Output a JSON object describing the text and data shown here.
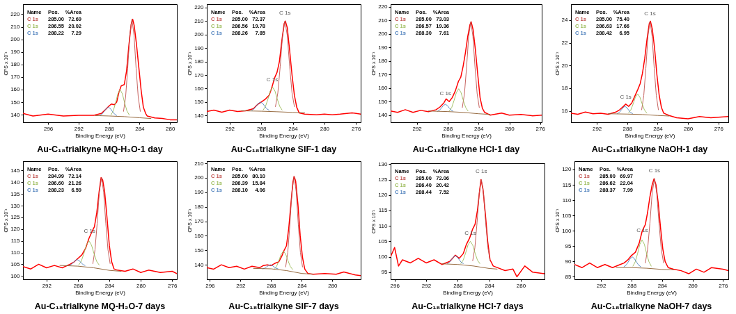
{
  "chart_data": [
    {
      "type": "line",
      "title": "Au-C₁₈trialkyne    MQ-H₂O-1 day",
      "xlabel": "Binding Energy (eV)",
      "ylabel": "CPS x 10⁻¹",
      "xlim": [
        299.3,
        279.1
      ],
      "ylim": [
        134,
        228
      ],
      "xticks": [
        296,
        292,
        288,
        284,
        280
      ],
      "yticks": [
        140,
        150,
        160,
        170,
        180,
        190,
        200,
        210,
        220
      ],
      "grid": false,
      "annotations": [
        "Name",
        "Pos.",
        "%Area",
        "C 1s",
        "285.00",
        "72.69",
        "C 1s",
        "286.55",
        "20.02",
        "C 1s",
        "288.22",
        "7.29"
      ],
      "series": [
        {
          "color": "#ff0000",
          "x": [
            299.3,
            298,
            296,
            294,
            292,
            290,
            289,
            288.5,
            288,
            287.7,
            287.3,
            287,
            286.7,
            286.4,
            286,
            285.7,
            285.4,
            285.1,
            284.9,
            284.7,
            284.4,
            284.1,
            283.8,
            283.5,
            283.2,
            283,
            282,
            281,
            280,
            279.1
          ],
          "values": [
            141,
            139,
            140.5,
            139,
            139.5,
            139.5,
            141,
            144,
            147,
            148.5,
            148,
            150,
            158,
            163,
            164,
            175,
            195,
            212,
            216,
            211,
            196,
            178,
            160,
            146,
            141,
            139,
            137.5,
            137,
            136,
            136
          ]
        },
        {
          "color": "#c0504d",
          "x": [
            286.1,
            285.825,
            285.55,
            285.275,
            285,
            284.725,
            284.45,
            284.175,
            283.9
          ],
          "values": [
            142.7,
            154.4,
            177,
            203.5,
            216,
            203.5,
            177,
            154.4,
            142.7
          ]
        },
        {
          "color": "#9bbb59",
          "x": [
            287.75,
            287.45,
            287.15,
            286.85,
            286.55,
            286.25,
            285.95,
            285.65,
            285.35
          ],
          "values": [
            139.8,
            143,
            149.3,
            156.6,
            160,
            156.6,
            149.3,
            143,
            139.8
          ]
        },
        {
          "color": "#4f81bd",
          "x": [
            289.2,
            288.925,
            288.65,
            288.375,
            288.1,
            287.825,
            287.55,
            287.275,
            287
          ],
          "values": [
            139.4,
            140.5,
            142.5,
            144.9,
            146,
            144.9,
            142.5,
            140.5,
            139.4
          ]
        },
        {
          "color": "#8b5a2b",
          "x": [
            289.8,
            288,
            286,
            284,
            282.5
          ],
          "values": [
            139.3,
            139,
            138.5,
            137.6,
            137
          ]
        }
      ]
    },
    {
      "type": "line",
      "title": "Au-C₁₈trialkyne    SIF-1 day",
      "xlabel": "Binding Energy (eV)",
      "ylabel": "CPS x 10⁻¹",
      "xlim": [
        294.9,
        275.4
      ],
      "ylim": [
        135,
        222.5
      ],
      "xticks": [
        292,
        288,
        284,
        280,
        276
      ],
      "yticks": [
        140,
        150,
        160,
        170,
        180,
        190,
        200,
        210,
        220
      ],
      "grid": false,
      "annotations": [
        "Name",
        "Pos.",
        "%Area",
        "C 1s",
        "285.00",
        "72.37",
        "C 1s",
        "286.56",
        "19.78",
        "C 1s",
        "288.26",
        "7.85",
        {
          "text": "C 1s",
          "x": 285,
          "y": 212
        },
        {
          "text": "C 1s",
          "x": 286.6,
          "y": 163
        }
      ],
      "series": [
        {
          "color": "#ff0000",
          "x": [
            294.9,
            294,
            293,
            292,
            291,
            290,
            289,
            288.5,
            288,
            287.5,
            287,
            286.7,
            286.3,
            286,
            285.7,
            285.4,
            285.1,
            284.95,
            284.7,
            284.4,
            284.1,
            283.8,
            283.5,
            283.2,
            282.5,
            281,
            280,
            279,
            278,
            276.5,
            275.4
          ],
          "values": [
            143,
            144,
            142.5,
            144,
            143,
            143.5,
            145,
            148,
            150,
            152,
            155,
            160,
            168,
            172,
            180,
            195,
            208,
            210,
            205,
            188,
            170,
            155,
            146,
            142,
            141,
            140.5,
            141,
            140.5,
            141,
            142,
            141
          ]
        },
        {
          "color": "#c0504d",
          "x": [
            286.2,
            285.9,
            285.6,
            285.3,
            285,
            284.7,
            284.4,
            284.1,
            283.8
          ],
          "values": [
            146.6,
            156.7,
            176.3,
            199.2,
            210,
            199.2,
            176.3,
            156.7,
            146.6
          ]
        },
        {
          "color": "#9bbb59",
          "x": [
            287.76,
            287.46,
            287.16,
            286.86,
            286.56,
            286.26,
            285.96,
            285.66,
            285.36
          ],
          "values": [
            144.1,
            146.8,
            152,
            158.1,
            161,
            158.1,
            152,
            146.8,
            144.1
          ]
        },
        {
          "color": "#4f81bd",
          "x": [
            289.2,
            288.925,
            288.65,
            288.375,
            288.1,
            287.825,
            287.55,
            287.275,
            287
          ],
          "values": [
            143.9,
            144.9,
            146.8,
            149,
            150,
            149,
            146.8,
            144.9,
            143.9
          ]
        },
        {
          "color": "#8b5a2b",
          "x": [
            290.5,
            288,
            286,
            284,
            282.5
          ],
          "values": [
            143.5,
            143.2,
            142.8,
            142.3,
            142
          ]
        }
      ]
    },
    {
      "type": "line",
      "title": "Au-C₁₈trialkyne    HCl-1 day",
      "xlabel": "Binding Energy (eV)",
      "ylabel": "CPS x 10⁻¹",
      "xlim": [
        295.4,
        275.8
      ],
      "ylim": [
        134.7,
        222
      ],
      "xticks": [
        292,
        288,
        284,
        280,
        276
      ],
      "yticks": [
        140,
        150,
        160,
        170,
        180,
        190,
        200,
        210,
        220
      ],
      "grid": false,
      "annotations": [
        "Name",
        "Pos.",
        "%Area",
        "C 1s",
        "285.00",
        "73.03",
        "C 1s",
        "286.57",
        "19.36",
        "C 1s",
        "288.30",
        "7.61",
        {
          "text": "C 1s",
          "x": 288.3,
          "y": 152
        }
      ],
      "series": [
        {
          "color": "#ff0000",
          "x": [
            295.4,
            294.5,
            293.5,
            292.5,
            291.5,
            290.5,
            289.5,
            289,
            288.5,
            288.2,
            287.8,
            287.4,
            287,
            286.6,
            286.3,
            286,
            285.7,
            285.4,
            285.1,
            284.95,
            284.7,
            284.4,
            284.1,
            283.8,
            283.5,
            283.2,
            282.5,
            281,
            280,
            278.5,
            277,
            275.8
          ],
          "values": [
            143,
            142,
            144,
            142,
            143.5,
            142.5,
            144,
            146,
            149,
            152,
            150,
            153,
            158,
            165,
            168,
            176,
            186,
            198,
            207,
            209,
            203,
            188,
            170,
            153,
            145,
            142,
            140,
            141.5,
            140,
            140.5,
            139.5,
            140
          ]
        },
        {
          "color": "#c0504d",
          "x": [
            286.1,
            285.825,
            285.55,
            285.275,
            285,
            284.725,
            284.45,
            284.175,
            283.9
          ],
          "values": [
            145.6,
            155.7,
            175.3,
            198.2,
            209,
            198.2,
            175.3,
            155.7,
            145.6
          ]
        },
        {
          "color": "#9bbb59",
          "x": [
            287.77,
            287.47,
            287.17,
            286.87,
            286.57,
            286.27,
            285.97,
            285.67,
            285.37
          ],
          "values": [
            143.1,
            145.7,
            150.8,
            156.7,
            159.5,
            156.7,
            150.8,
            145.7,
            143.1
          ]
        },
        {
          "color": "#4f81bd",
          "x": [
            289.3,
            289.05,
            288.8,
            288.55,
            288.3,
            288.05,
            287.8,
            287.55,
            287.3
          ],
          "values": [
            142.8,
            143.7,
            145.3,
            147.1,
            148,
            147.1,
            145.3,
            143.7,
            142.8
          ]
        },
        {
          "color": "#8b5a2b",
          "x": [
            290.5,
            288,
            286,
            284,
            282.5
          ],
          "values": [
            143,
            142.6,
            142,
            141,
            140.5
          ]
        }
      ]
    },
    {
      "type": "line",
      "title": "Au-C₁₈trialkyne    NaOH-1 day",
      "xlabel": "Binding Energy (eV)",
      "ylabel": "CPS x 10⁻²",
      "xlim": [
        295.4,
        274.7
      ],
      "ylim": [
        15,
        25.4
      ],
      "xticks": [
        292,
        288,
        284,
        280,
        276
      ],
      "yticks": [
        16,
        18,
        20,
        22,
        24
      ],
      "grid": false,
      "annotations": [
        "Name",
        "Pos.",
        "%Area",
        "C 1s",
        "285.00",
        "75.40",
        "C 1s",
        "286.63",
        "17.66",
        "C 1s",
        "288.42",
        "6.95",
        {
          "text": "C 1s",
          "x": 285,
          "y": 24.1
        },
        {
          "text": "C 1s",
          "x": 288.2,
          "y": 16.8
        }
      ],
      "series": [
        {
          "color": "#ff0000",
          "x": [
            295.4,
            294.5,
            293.5,
            292.5,
            291.5,
            290.5,
            289.5,
            289,
            288.5,
            288.2,
            287.8,
            287.4,
            287,
            286.6,
            286.3,
            286,
            285.7,
            285.4,
            285.1,
            284.95,
            284.7,
            284.4,
            284.1,
            283.8,
            283.5,
            283.2,
            282.5,
            281.5,
            280,
            278.5,
            277,
            274.7
          ],
          "values": [
            15.8,
            15.7,
            15.9,
            15.75,
            15.8,
            15.7,
            15.9,
            16.1,
            16.4,
            16.6,
            16.4,
            16.7,
            17.3,
            17.9,
            18.4,
            19.3,
            20.6,
            22.3,
            23.7,
            23.9,
            23.2,
            21.5,
            19.2,
            17.4,
            16.3,
            15.8,
            15.6,
            15.4,
            15.3,
            15.5,
            15.4,
            15.5
          ]
        },
        {
          "color": "#c0504d",
          "x": [
            286.1,
            285.825,
            285.55,
            285.275,
            285,
            284.725,
            284.45,
            284.175,
            283.9
          ],
          "values": [
            16.1,
            17.35,
            19.75,
            22.57,
            23.9,
            22.57,
            19.75,
            17.35,
            16.1
          ]
        },
        {
          "color": "#9bbb59",
          "x": [
            287.83,
            287.53,
            287.23,
            286.93,
            286.63,
            286.33,
            286.03,
            285.73,
            285.43
          ],
          "values": [
            15.81,
            16.08,
            16.6,
            17.21,
            17.5,
            17.21,
            16.6,
            16.08,
            15.81
          ]
        },
        {
          "color": "#4f81bd",
          "x": [
            289.3,
            289.05,
            288.8,
            288.55,
            288.3,
            288.05,
            287.8,
            287.55,
            287.3
          ],
          "values": [
            15.76,
            15.86,
            16.06,
            16.29,
            16.4,
            16.29,
            16.06,
            15.86,
            15.76
          ]
        },
        {
          "color": "#8b5a2b",
          "x": [
            290.5,
            288,
            286,
            284,
            282.5
          ],
          "values": [
            15.75,
            15.72,
            15.68,
            15.6,
            15.55
          ]
        }
      ]
    },
    {
      "type": "line",
      "title": "Au-C₁₈trialkyne    MQ-H₂O-7 days",
      "xlabel": "Binding Energy (eV)",
      "ylabel": "CPS x 10⁻¹",
      "xlim": [
        295,
        275.4
      ],
      "ylim": [
        98.6,
        149
      ],
      "xticks": [
        292,
        288,
        284,
        280,
        276
      ],
      "yticks": [
        100,
        105,
        110,
        115,
        120,
        125,
        130,
        135,
        140,
        145
      ],
      "grid": false,
      "annotations": [
        "Name",
        "Pos.",
        "%Area",
        "C 1s",
        "284.99",
        "72.14",
        "C 1s",
        "286.60",
        "21.26",
        "C 1s",
        "288.23",
        "6.59",
        {
          "text": "C 1s",
          "x": 286.5,
          "y": 117
        }
      ],
      "series": [
        {
          "color": "#ff0000",
          "x": [
            295,
            294,
            293,
            292,
            291,
            290,
            289,
            288.5,
            288,
            287.5,
            287,
            286.6,
            286.2,
            285.9,
            285.6,
            285.3,
            285.05,
            284.85,
            284.6,
            284.3,
            284,
            283.7,
            283.4,
            283,
            282,
            281,
            280,
            279,
            277.5,
            276,
            275.4
          ],
          "values": [
            104,
            103,
            105,
            103.5,
            104.5,
            103.5,
            105,
            106,
            107.5,
            109,
            112,
            116,
            119,
            121,
            127,
            136,
            142,
            141,
            136,
            125,
            113,
            106,
            103,
            102.5,
            102,
            103,
            101.5,
            102.5,
            101.5,
            102,
            101
          ]
        },
        {
          "color": "#c0504d",
          "x": [
            286.1,
            285.825,
            285.55,
            285.275,
            285,
            284.725,
            284.45,
            284.175,
            283.9
          ],
          "values": [
            105.3,
            111.2,
            122.5,
            135.8,
            142,
            135.8,
            122.5,
            111.2,
            105.3
          ]
        },
        {
          "color": "#9bbb59",
          "x": [
            287.9,
            287.575,
            287.25,
            286.925,
            286.6,
            286.275,
            285.95,
            285.625,
            285.3
          ],
          "values": [
            104.7,
            106.3,
            109.5,
            113.2,
            115,
            113.2,
            109.5,
            106.3,
            104.7
          ]
        },
        {
          "color": "#4f81bd",
          "x": [
            289.1,
            288.85,
            288.6,
            288.35,
            288.1,
            287.85,
            287.6,
            287.35,
            287.1
          ],
          "values": [
            104.5,
            104.9,
            105.7,
            106.6,
            107,
            106.6,
            105.7,
            104.9,
            104.5
          ]
        },
        {
          "color": "#8b5a2b",
          "x": [
            290.3,
            288,
            286,
            284,
            282.5
          ],
          "values": [
            104.5,
            104.2,
            103.5,
            102.4,
            102
          ]
        }
      ]
    },
    {
      "type": "line",
      "title": "Au-C₁₈trialkyne    SIF-7 days",
      "xlabel": "Binding Energy (eV)",
      "ylabel": "CPS x 10⁻¹",
      "xlim": [
        296.4,
        276.3
      ],
      "ylim": [
        130,
        211.5
      ],
      "xticks": [
        296,
        292,
        288,
        284,
        280
      ],
      "yticks": [
        140,
        150,
        160,
        170,
        180,
        190,
        200,
        210
      ],
      "grid": false,
      "annotations": [
        "Name",
        "Pos.",
        "%Area",
        "C 1s",
        "285.00",
        "80.10",
        "C 1s",
        "286.39",
        "15.84",
        "C 1s",
        "288.10",
        "4.06"
      ],
      "series": [
        {
          "color": "#ff0000",
          "x": [
            296.4,
            295.5,
            294.5,
            293.5,
            292.5,
            291.5,
            290.5,
            289.5,
            289,
            288.5,
            288,
            287.5,
            287,
            286.6,
            286.3,
            286,
            285.7,
            285.4,
            285.15,
            285,
            284.8,
            284.5,
            284.2,
            283.9,
            283.6,
            283.2,
            282.5,
            281,
            279.5,
            278.5,
            277,
            276.3
          ],
          "values": [
            138,
            137,
            140,
            138,
            139,
            137,
            139,
            138,
            139.5,
            140,
            139.5,
            141,
            142,
            146,
            150,
            153,
            165,
            183,
            197,
            201,
            198,
            182,
            160,
            145,
            137,
            134,
            133.5,
            134,
            133.5,
            135,
            133,
            132.5
          ]
        },
        {
          "color": "#c0504d",
          "x": [
            286.1,
            285.825,
            285.55,
            285.275,
            285,
            284.725,
            284.45,
            284.175,
            283.9
          ],
          "values": [
            138.5,
            148.5,
            167.8,
            190.4,
            201,
            190.4,
            167.8,
            148.5,
            138.5
          ]
        },
        {
          "color": "#9bbb59",
          "x": [
            287.59,
            287.29,
            286.99,
            286.69,
            286.39,
            286.09,
            285.79,
            285.49,
            285.19
          ],
          "values": [
            136.8,
            138.8,
            142.8,
            147.3,
            149.5,
            147.3,
            142.8,
            138.8,
            136.8
          ]
        },
        {
          "color": "#4f81bd",
          "x": [
            289.1,
            288.85,
            288.6,
            288.35,
            288.1,
            287.85,
            287.6,
            287.35,
            287.1
          ],
          "values": [
            137.2,
            137.6,
            138.5,
            139.5,
            140,
            139.5,
            138.5,
            137.6,
            137.2
          ]
        },
        {
          "color": "#8b5a2b",
          "x": [
            290.3,
            288,
            286,
            284,
            282.5
          ],
          "values": [
            137.5,
            137.2,
            136,
            134,
            133.5
          ]
        }
      ]
    },
    {
      "type": "line",
      "title": "Au-C₁₈trialkyne    HCl-7 days",
      "xlabel": "Binding Energy (eV)",
      "ylabel": "CPS x 10⁻¹",
      "xlim": [
        296.5,
        277
      ],
      "ylim": [
        92.7,
        130.3
      ],
      "xticks": [
        296,
        292,
        288,
        284,
        280
      ],
      "yticks": [
        95,
        100,
        105,
        110,
        115,
        120,
        125,
        130
      ],
      "grid": false,
      "annotations": [
        "Name",
        "Pos.",
        "%Area",
        "C 1s",
        "285.00",
        "72.06",
        "C 1s",
        "286.40",
        "20.42",
        "C 1s",
        "288.44",
        "7.52",
        {
          "text": "C 1s",
          "x": 285,
          "y": 126
        },
        {
          "text": "C 1s",
          "x": 286.4,
          "y": 106
        }
      ],
      "series": [
        {
          "color": "#ff0000",
          "x": [
            296.5,
            296,
            295.5,
            295,
            294,
            293,
            292,
            291,
            290,
            289,
            288.3,
            287.8,
            287.3,
            286.9,
            286.5,
            286.1,
            285.8,
            285.5,
            285.2,
            285.05,
            284.8,
            284.5,
            284.2,
            283.9,
            283.5,
            283,
            282,
            281,
            280.5,
            279.5,
            278.5,
            277
          ],
          "values": [
            100,
            103,
            97,
            99,
            98,
            99.5,
            98,
            99,
            97.5,
            98.5,
            100.5,
            99.5,
            101,
            104,
            106,
            109,
            110.5,
            115,
            122,
            125,
            122,
            114,
            105,
            99,
            97,
            96.5,
            95.5,
            96,
            93.5,
            97,
            95,
            94.5
          ]
        },
        {
          "color": "#c0504d",
          "x": [
            286.1,
            285.825,
            285.55,
            285.275,
            285,
            284.725,
            284.45,
            284.175,
            283.9
          ],
          "values": [
            98.7,
            102.9,
            111,
            120.5,
            125,
            120.5,
            111,
            102.9,
            98.7
          ]
        },
        {
          "color": "#9bbb59",
          "x": [
            287.6,
            287.3,
            287,
            286.7,
            286.4,
            286.1,
            285.8,
            285.5,
            285.2
          ],
          "values": [
            97.8,
            98.9,
            101.2,
            103.8,
            105,
            103.8,
            101.2,
            98.9,
            97.8
          ]
        },
        {
          "color": "#4f81bd",
          "x": [
            289.3,
            289.05,
            288.8,
            288.55,
            288.3,
            288.05,
            287.8,
            287.55,
            287.3
          ],
          "values": [
            97.8,
            98.2,
            99,
            99.9,
            100.3,
            99.9,
            99,
            98.2,
            97.8
          ]
        },
        {
          "color": "#8b5a2b",
          "x": [
            290,
            288,
            286,
            284,
            283
          ],
          "values": [
            97.7,
            97.5,
            97,
            96.2,
            96
          ]
        }
      ]
    },
    {
      "type": "line",
      "title": "Au-C₁₈trialkyne    NaOH-7 days",
      "xlabel": "Binding Energy (eV)",
      "ylabel": "CPS x 10⁻¹",
      "xlim": [
        295.5,
        275.3
      ],
      "ylim": [
        84.2,
        122.7
      ],
      "xticks": [
        292,
        288,
        284,
        280,
        276
      ],
      "yticks": [
        85,
        90,
        95,
        100,
        105,
        110,
        115,
        120
      ],
      "grid": false,
      "annotations": [
        "Name",
        "Pos.",
        "%Area",
        "C 1s",
        "285.00",
        "69.97",
        "C 1s",
        "286.62",
        "22.04",
        "C 1s",
        "288.37",
        "7.99",
        {
          "text": "C 1s",
          "x": 285,
          "y": 118
        },
        {
          "text": "C 1s",
          "x": 286.6,
          "y": 98.5
        }
      ],
      "series": [
        {
          "color": "#ff0000",
          "x": [
            295.5,
            294.5,
            293.5,
            292.5,
            291.5,
            290.5,
            289.5,
            289,
            288.5,
            288,
            287.5,
            287,
            286.6,
            286.2,
            285.9,
            285.6,
            285.3,
            285.05,
            284.8,
            284.5,
            284.2,
            283.9,
            283.6,
            283.2,
            282.5,
            281.5,
            280.5,
            279.5,
            278.5,
            277.5,
            276,
            275.3
          ],
          "values": [
            89,
            88,
            89.5,
            88,
            89,
            88,
            89,
            89.5,
            90.5,
            92,
            93,
            96,
            100,
            102,
            106,
            111,
            115,
            117,
            115,
            109,
            101,
            94,
            90,
            88,
            87.5,
            87,
            86,
            87.5,
            86.5,
            88,
            87.5,
            87
          ]
        },
        {
          "color": "#c0504d",
          "x": [
            286.2,
            285.9,
            285.6,
            285.3,
            285,
            284.7,
            284.4,
            284.1,
            283.8
          ],
          "values": [
            89.5,
            93.9,
            102.4,
            112.3,
            117,
            112.3,
            102.4,
            93.9,
            89.5
          ]
        },
        {
          "color": "#9bbb59",
          "x": [
            287.82,
            287.52,
            287.22,
            286.92,
            286.62,
            286.32,
            286.02,
            285.72,
            285.42
          ],
          "values": [
            88.5,
            89.9,
            92.5,
            95.6,
            97,
            95.6,
            92.5,
            89.9,
            88.5
          ]
        },
        {
          "color": "#4f81bd",
          "x": [
            289,
            288.725,
            288.45,
            288.175,
            287.9,
            287.625,
            287.35,
            287.075,
            286.8
          ],
          "values": [
            88.3,
            88.8,
            89.8,
            90.9,
            91.5,
            90.9,
            89.8,
            88.8,
            88.3
          ]
        },
        {
          "color": "#8b5a2b",
          "x": [
            290,
            288,
            286,
            284,
            282.5
          ],
          "values": [
            88,
            88,
            87.8,
            87.4,
            87.3
          ]
        }
      ]
    }
  ]
}
